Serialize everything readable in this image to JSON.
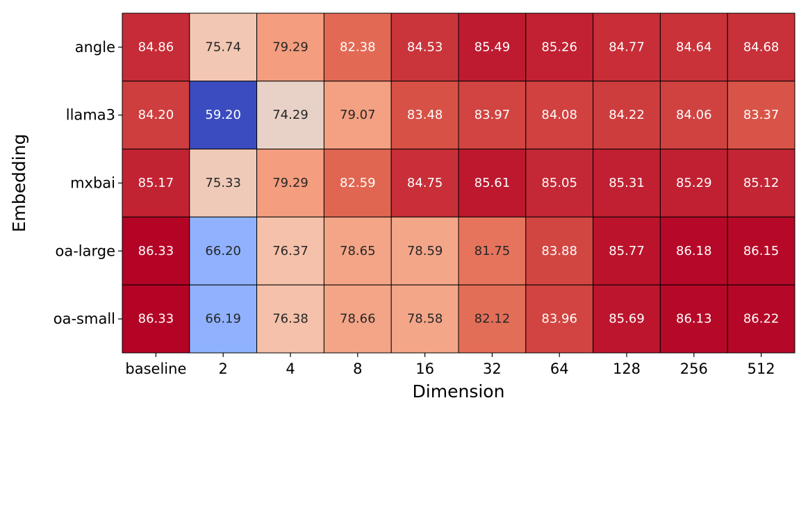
{
  "chart_data": {
    "type": "heatmap",
    "title": "",
    "xlabel": "Dimension",
    "ylabel": "Embedding",
    "x_categories": [
      "baseline",
      "2",
      "4",
      "8",
      "16",
      "32",
      "64",
      "128",
      "256",
      "512"
    ],
    "y_categories": [
      "angle",
      "llama3",
      "mxbai",
      "oa-large",
      "oa-small"
    ],
    "values": [
      [
        84.86,
        75.74,
        79.29,
        82.38,
        84.53,
        85.49,
        85.26,
        84.77,
        84.64,
        84.68
      ],
      [
        84.2,
        59.2,
        74.29,
        79.07,
        83.48,
        83.97,
        84.08,
        84.22,
        84.06,
        83.37
      ],
      [
        85.17,
        75.33,
        79.29,
        82.59,
        84.75,
        85.61,
        85.05,
        85.31,
        85.29,
        85.12
      ],
      [
        86.33,
        66.2,
        76.37,
        78.65,
        78.59,
        81.75,
        83.88,
        85.77,
        86.18,
        86.15
      ],
      [
        86.33,
        66.19,
        76.38,
        78.66,
        78.58,
        82.12,
        83.96,
        85.69,
        86.13,
        86.22
      ]
    ],
    "colormap": "coolwarm",
    "vmin": 59.2,
    "vmax": 86.33,
    "value_format": "2 decimals",
    "colorbar": false
  }
}
